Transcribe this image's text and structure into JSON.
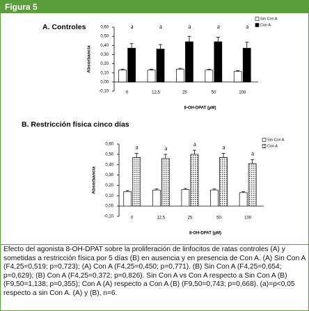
{
  "figure_label": "Figura 5",
  "caption": "Efecto del agonista 8-OH-DPAT sobre la proliferación de linfocitos de ratas controles (A) y sometidas a restricción física por 5 días (B) en ausencia y en presencia de Con A. (A) Sin Con A (F4,25=0,519; p=0,723); (A) Con A (F4,25=0,450; p=0,771). (B) Sin Con A (F4,25=0,654; p=0,629); (B) Con A (F4,25=0,372; p=0,826). Sin Con A vs Con A respecto a Sin Con A (B) (F9,50=1,138; p=0,355); Con A (A) respecto a Con A (B) (F9,50=0,743; p=0,668). (a)=p<0,05 respecto a sin Con A. (A) y (B), n=6.",
  "chart_data": [
    {
      "type": "bar",
      "title": "A. Controles",
      "y_label": "Absorbancia",
      "x_label": "8-OH-DPAT (µM)",
      "categories": [
        "0",
        "12,5",
        "25",
        "50",
        "100"
      ],
      "annotations": [
        "a",
        "a",
        "a",
        "a",
        "a"
      ],
      "series": [
        {
          "name": "Sin Con A",
          "color": "#ffffff",
          "values": [
            0.13,
            0.13,
            0.14,
            0.13,
            0.115
          ],
          "errors": [
            0.01,
            0.01,
            0.01,
            0.01,
            0.01
          ]
        },
        {
          "name": "Con A",
          "color": "#000000",
          "values": [
            0.37,
            0.36,
            0.44,
            0.44,
            0.37
          ],
          "errors": [
            0.05,
            0.05,
            0.06,
            0.05,
            0.065
          ]
        }
      ],
      "ylim": [
        -0.1,
        0.6
      ],
      "yticks": [
        {
          "value": 0.6,
          "label": "0,60"
        },
        {
          "value": 0.5,
          "label": "0,50"
        },
        {
          "value": 0.4,
          "label": "0,40"
        },
        {
          "value": 0.3,
          "label": "0,30"
        },
        {
          "value": 0.2,
          "label": "0,20"
        },
        {
          "value": 0.1,
          "label": "0,10"
        },
        {
          "value": 0,
          "label": "0,00"
        },
        {
          "value": -0.1,
          "label": "-0,10"
        }
      ]
    },
    {
      "type": "bar",
      "title": "B. Restricción física cinco días",
      "y_label": "Absorbancia",
      "x_label": "8-OH-DPAT (µM)",
      "categories": [
        "0",
        "12,5",
        "25",
        "50",
        "100"
      ],
      "annotations": [
        "a",
        "a",
        "a",
        "a",
        "a"
      ],
      "series": [
        {
          "name": "Sin Con A",
          "color": "#ffffff",
          "values": [
            0.14,
            0.155,
            0.16,
            0.155,
            0.13
          ],
          "errors": [
            0.01,
            0.01,
            0.01,
            0.01,
            0.01
          ]
        },
        {
          "name": "Con A",
          "color": "#bdbdbd",
          "pattern": "dotted",
          "values": [
            0.47,
            0.46,
            0.5,
            0.47,
            0.41
          ],
          "errors": [
            0.04,
            0.04,
            0.04,
            0.04,
            0.04
          ]
        }
      ],
      "ylim": [
        -0.1,
        0.6
      ],
      "yticks": [
        {
          "value": 0.6,
          "label": "0,60"
        },
        {
          "value": 0.5,
          "label": "0,50"
        },
        {
          "value": 0.4,
          "label": "0,40"
        },
        {
          "value": 0.3,
          "label": "0,30"
        },
        {
          "value": 0.2,
          "label": "0,20"
        },
        {
          "value": 0.1,
          "label": "0,10"
        },
        {
          "value": 0,
          "label": "0,00"
        },
        {
          "value": -0.1,
          "label": "-0,10"
        }
      ]
    }
  ]
}
